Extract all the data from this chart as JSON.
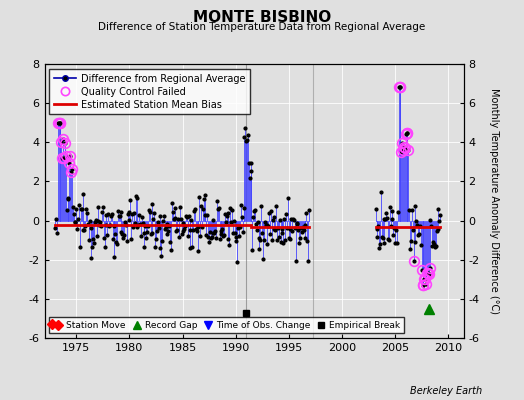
{
  "title": "MONTE BISBINO",
  "subtitle": "Difference of Station Temperature Data from Regional Average",
  "ylabel": "Monthly Temperature Anomaly Difference (°C)",
  "xlabel_years": [
    1975,
    1980,
    1985,
    1990,
    1995,
    2000,
    2005,
    2010
  ],
  "ylim": [
    -6,
    8
  ],
  "yticks": [
    -6,
    -4,
    -2,
    0,
    2,
    4,
    6,
    8
  ],
  "xlim": [
    1972.0,
    2011.5
  ],
  "background_color": "#e0e0e0",
  "line_color": "#4444ff",
  "line_color_dark": "#0000aa",
  "dot_color": "#000000",
  "bias_color": "#dd0000",
  "qc_color": "#ff44ff",
  "credit": "Berkeley Earth",
  "bias_value_1": -0.25,
  "bias_value_2": -0.35,
  "bias_break_year": 1991.5,
  "empirical_break_x": 1991.0,
  "empirical_break_y": -4.7,
  "record_gap_x": 2008.2,
  "record_gap_y": -4.5,
  "station_move_x": 1972.7,
  "station_move_y": -5.3,
  "data_gap_start": 1997.3,
  "data_gap_end": 2003.0,
  "seg1_end": 1997.0,
  "seg2_start": 2003.2,
  "seg2_end": 2009.3
}
